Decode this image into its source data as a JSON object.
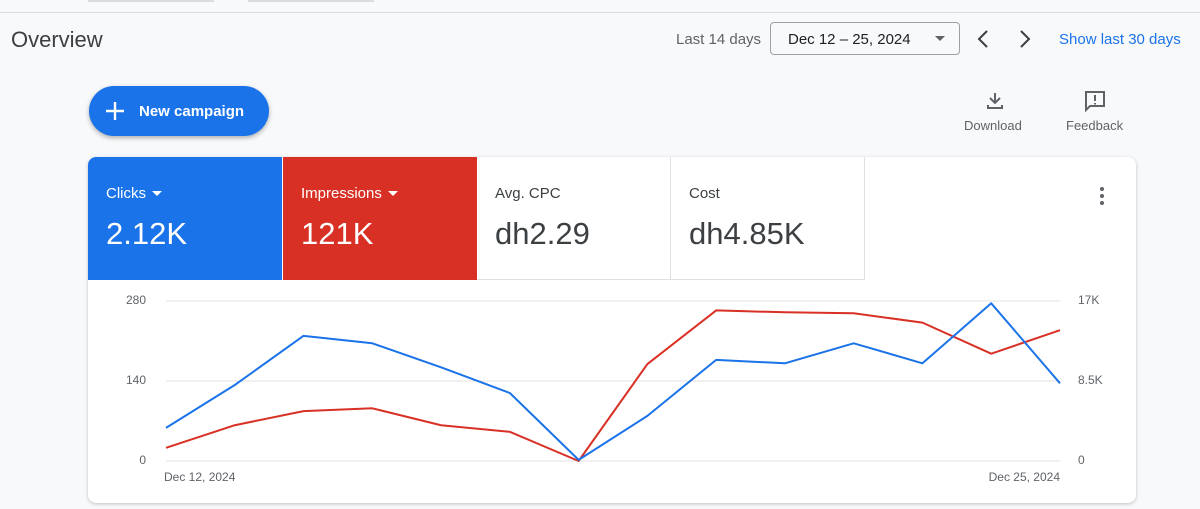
{
  "header": {
    "title": "Overview",
    "range_label": "Last 14 days",
    "date_range": "Dec 12 – 25, 2024",
    "show_more": "Show last 30 days"
  },
  "actions": {
    "new_campaign": "New campaign",
    "download": "Download",
    "feedback": "Feedback"
  },
  "metrics": [
    {
      "label": "Clicks",
      "value": "2.12K"
    },
    {
      "label": "Impressions",
      "value": "121K"
    },
    {
      "label": "Avg. CPC",
      "value": "dh2.29"
    },
    {
      "label": "Cost",
      "value": "dh4.85K"
    }
  ],
  "chart_data": {
    "type": "line",
    "categories": [
      "Dec 12, 2024",
      null,
      null,
      null,
      null,
      null,
      null,
      null,
      null,
      null,
      null,
      null,
      null,
      "Dec 25, 2024"
    ],
    "series": [
      {
        "name": "Clicks",
        "color": "#1a73e8",
        "values": [
          58,
          133,
          219,
          206,
          164,
          119,
          2,
          79,
          177,
          171,
          206,
          171,
          276,
          136
        ]
      },
      {
        "name": "Impressions",
        "color": "#d93025",
        "axis": "y2",
        "values": [
          1400,
          3800,
          5300,
          5600,
          3800,
          3100,
          0,
          10300,
          16000,
          15800,
          15700,
          14700,
          11400,
          13900
        ]
      }
    ],
    "ylim": [
      0,
      280
    ],
    "yticks": [
      0,
      140,
      280
    ],
    "y2lim": [
      0,
      17000
    ],
    "y2ticks": [
      0,
      {
        "value": 8500,
        "label": "8.5K"
      },
      {
        "value": 17000,
        "label": "17K"
      }
    ],
    "grid": true
  }
}
